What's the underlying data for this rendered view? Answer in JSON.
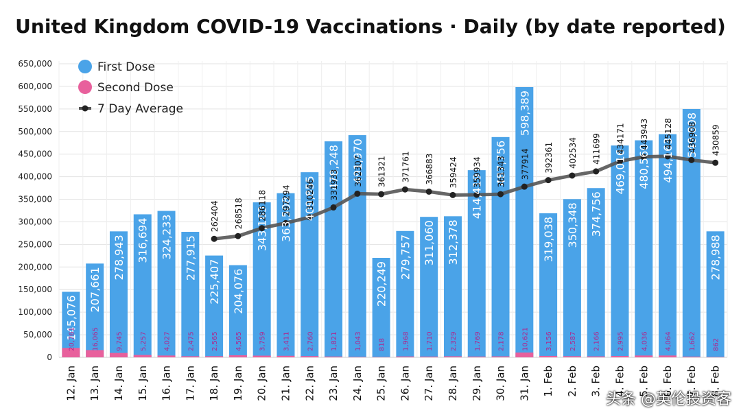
{
  "chart_data": {
    "type": "bar",
    "title": "United Kingdom COVID-19 Vaccinations · Daily (by date reported)",
    "categories": [
      "12. Jan",
      "13. Jan",
      "14. Jan",
      "15. Jan",
      "16. Jan",
      "17. Jan",
      "18. Jan",
      "19. Jan",
      "20. Jan",
      "21. Jan",
      "22. Jan",
      "23. Jan",
      "24. Jan",
      "25. Jan",
      "26. Jan",
      "27. Jan",
      "28. Jan",
      "29. Jan",
      "30. Jan",
      "31. Jan",
      "1. Feb",
      "2. Feb",
      "3. Feb",
      "4. Feb",
      "5. Feb",
      "6. Feb",
      "7. Feb",
      "8. Feb"
    ],
    "series": [
      {
        "name": "First Dose",
        "color": "#4aa3e8",
        "values": [
          145076,
          207661,
          278943,
          316694,
          324233,
          277915,
          225407,
          204076,
          343163,
          363508,
          409855,
          478248,
          491970,
          220249,
          279757,
          311060,
          312378,
          414419,
          487756,
          598389,
          319038,
          350348,
          374756,
          469016,
          480560,
          494163,
          549808,
          278988
        ]
      },
      {
        "name": "Second Dose",
        "color": "#e8609c",
        "values": [
          20761,
          16065,
          9745,
          5257,
          4027,
          2475,
          2565,
          4565,
          3759,
          3411,
          2760,
          1821,
          1043,
          818,
          1968,
          1710,
          2329,
          1769,
          2178,
          10621,
          3156,
          2587,
          2166,
          2995,
          4036,
          4064,
          1662,
          862
        ]
      },
      {
        "name": "7 Day Average",
        "color": "#555555",
        "values": [
          null,
          null,
          null,
          null,
          null,
          null,
          262404,
          268518,
          286118,
          297294,
          310246,
          331933,
          362307,
          361321,
          371761,
          366883,
          359424,
          359934,
          361343,
          377914,
          392361,
          402534,
          411699,
          434171,
          443943,
          445128,
          436908,
          430859
        ]
      }
    ],
    "first_dose_labels": [
      "145,076",
      "207,661",
      "278,943",
      "316,694",
      "324,233",
      "277,915",
      "225,407",
      "204,076",
      "343,163",
      "363,508",
      "409,855",
      "478,248",
      "491,970",
      "220,249",
      "279,757",
      "311,060",
      "312,378",
      "414,419",
      "487,756",
      "598,389",
      "319,038",
      "350,348",
      "374,756",
      "469,016",
      "480,560",
      "494,163",
      "549,808",
      "278,988"
    ],
    "second_dose_labels": [
      "20,761",
      "16,065",
      "9,745",
      "5,257",
      "4,027",
      "2,475",
      "2,565",
      "4,565",
      "3,759",
      "3,411",
      "2,760",
      "1,821",
      "1,043",
      "818",
      "1,968",
      "1,710",
      "2,329",
      "1,769",
      "2,178",
      "10,621",
      "3,156",
      "2,587",
      "2,166",
      "2,995",
      "4,036",
      "4,064",
      "1,662",
      "862"
    ],
    "y_ticks": [
      "0",
      "50,000",
      "100,000",
      "150,000",
      "200,000",
      "250,000",
      "300,000",
      "350,000",
      "400,000",
      "450,000",
      "500,000",
      "550,000",
      "600,000",
      "650,000"
    ],
    "ylim": [
      0,
      650000
    ],
    "grid": true,
    "legend_position": "top-left"
  },
  "watermark": "头条 @英伦投资客"
}
